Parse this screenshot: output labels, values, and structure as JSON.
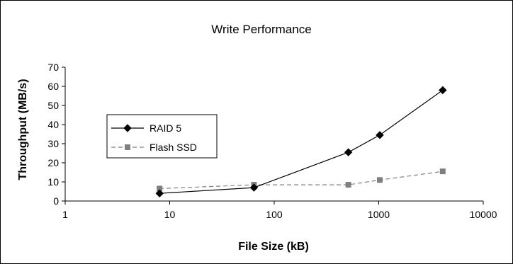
{
  "chart_data": {
    "type": "line",
    "title": "Write Performance",
    "xlabel": "File Size (kB)",
    "ylabel": "Throughput (MB/s)",
    "x_scale": "log",
    "xlim": [
      1,
      10000
    ],
    "ylim": [
      0,
      70
    ],
    "x_ticks": [
      "1",
      "10",
      "100",
      "1000",
      "10000"
    ],
    "y_ticks": [
      "0",
      "10",
      "20",
      "30",
      "40",
      "50",
      "60",
      "70"
    ],
    "grid": false,
    "legend_position": "left",
    "series": [
      {
        "name": "RAID 5",
        "color": "#000000",
        "line_style": "solid",
        "marker": "diamond",
        "x": [
          8,
          64,
          512,
          1024,
          4096
        ],
        "y": [
          4,
          7,
          25.5,
          34.5,
          58
        ]
      },
      {
        "name": "Flash SSD",
        "color": "#808080",
        "line_style": "dashed",
        "marker": "square",
        "x": [
          8,
          64,
          512,
          1024,
          4096
        ],
        "y": [
          6.5,
          8.5,
          8.5,
          11,
          15.5
        ]
      }
    ]
  }
}
